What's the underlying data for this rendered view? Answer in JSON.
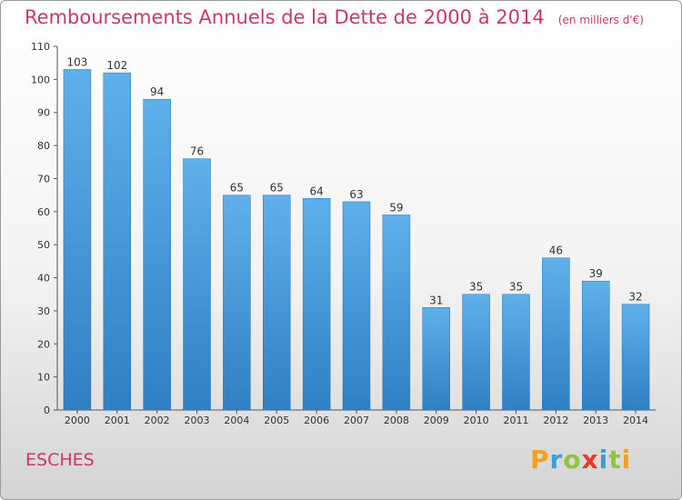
{
  "header": {
    "title": "Remboursements Annuels de la Dette de 2000 à 2014",
    "unit": "(en milliers d'€)"
  },
  "commune": "ESCHES",
  "logo": {
    "text": "Proxiti",
    "letters": [
      "P",
      "r",
      "o",
      "x",
      "i",
      "t",
      "i"
    ]
  },
  "colors": {
    "title": "#c8386e",
    "bar_top": "#5fb0ea",
    "bar_bottom": "#2f7fc4",
    "axis": "#555555"
  },
  "chart_data": {
    "type": "bar",
    "title": "Remboursements Annuels de la Dette de 2000 à 2014",
    "xlabel": "",
    "ylabel": "",
    "categories": [
      "2000",
      "2001",
      "2002",
      "2003",
      "2004",
      "2005",
      "2006",
      "2007",
      "2008",
      "2009",
      "2010",
      "2011",
      "2012",
      "2013",
      "2014"
    ],
    "values": [
      103,
      102,
      94,
      76,
      65,
      65,
      64,
      63,
      59,
      31,
      35,
      35,
      46,
      39,
      32
    ],
    "ylim": [
      0,
      110
    ],
    "yticks": [
      0,
      10,
      20,
      30,
      40,
      50,
      60,
      70,
      80,
      90,
      100,
      110
    ],
    "grid": false,
    "data_labels": true
  }
}
